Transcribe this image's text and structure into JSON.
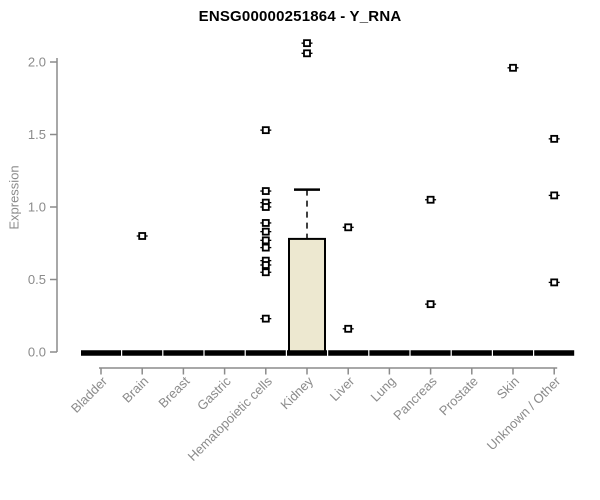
{
  "chart_data": {
    "type": "boxplot",
    "title": "ENSG00000251864 - Y_RNA",
    "ylabel": "Expression",
    "xlabel": "",
    "ylim": [
      0,
      2.15
    ],
    "yticks": [
      "0.0",
      "0.5",
      "1.0",
      "1.5",
      "2.0"
    ],
    "ytick_values": [
      0,
      0.5,
      1.0,
      1.5,
      2.0
    ],
    "grid": "off",
    "legend": "none",
    "categories": [
      "Bladder",
      "Brain",
      "Breast",
      "Gastric",
      "Hematopoietic cells",
      "Kidney",
      "Liver",
      "Lung",
      "Pancreas",
      "Prostate",
      "Skin",
      "Unknown / Other"
    ],
    "boxes": [
      {
        "category": "Bladder",
        "q1": 0,
        "median": 0,
        "q3": 0,
        "whisker_low": 0,
        "whisker_high": 0
      },
      {
        "category": "Brain",
        "q1": 0,
        "median": 0,
        "q3": 0,
        "whisker_low": 0,
        "whisker_high": 0
      },
      {
        "category": "Breast",
        "q1": 0,
        "median": 0,
        "q3": 0,
        "whisker_low": 0,
        "whisker_high": 0
      },
      {
        "category": "Gastric",
        "q1": 0,
        "median": 0,
        "q3": 0,
        "whisker_low": 0,
        "whisker_high": 0
      },
      {
        "category": "Hematopoietic cells",
        "q1": 0,
        "median": 0,
        "q3": 0,
        "whisker_low": 0,
        "whisker_high": 0
      },
      {
        "category": "Kidney",
        "q1": 0,
        "median": 0,
        "q3": 0.78,
        "whisker_low": 0,
        "whisker_high": 1.12
      },
      {
        "category": "Liver",
        "q1": 0,
        "median": 0,
        "q3": 0,
        "whisker_low": 0,
        "whisker_high": 0
      },
      {
        "category": "Lung",
        "q1": 0,
        "median": 0,
        "q3": 0,
        "whisker_low": 0,
        "whisker_high": 0
      },
      {
        "category": "Pancreas",
        "q1": 0,
        "median": 0,
        "q3": 0,
        "whisker_low": 0,
        "whisker_high": 0
      },
      {
        "category": "Prostate",
        "q1": 0,
        "median": 0,
        "q3": 0,
        "whisker_low": 0,
        "whisker_high": 0
      },
      {
        "category": "Skin",
        "q1": 0,
        "median": 0,
        "q3": 0,
        "whisker_low": 0,
        "whisker_high": 0
      },
      {
        "category": "Unknown / Other",
        "q1": 0,
        "median": 0,
        "q3": 0,
        "whisker_low": 0,
        "whisker_high": 0
      }
    ],
    "outlier_points": [
      {
        "category": "Brain",
        "value": 0.8
      },
      {
        "category": "Hematopoietic cells",
        "value": 1.53
      },
      {
        "category": "Hematopoietic cells",
        "value": 1.11
      },
      {
        "category": "Hematopoietic cells",
        "value": 1.03
      },
      {
        "category": "Hematopoietic cells",
        "value": 1.0
      },
      {
        "category": "Hematopoietic cells",
        "value": 0.89
      },
      {
        "category": "Hematopoietic cells",
        "value": 0.83
      },
      {
        "category": "Hematopoietic cells",
        "value": 0.77
      },
      {
        "category": "Hematopoietic cells",
        "value": 0.72
      },
      {
        "category": "Hematopoietic cells",
        "value": 0.63
      },
      {
        "category": "Hematopoietic cells",
        "value": 0.6
      },
      {
        "category": "Hematopoietic cells",
        "value": 0.55
      },
      {
        "category": "Hematopoietic cells",
        "value": 0.23
      },
      {
        "category": "Kidney",
        "value": 2.13
      },
      {
        "category": "Kidney",
        "value": 2.06
      },
      {
        "category": "Liver",
        "value": 0.86
      },
      {
        "category": "Liver",
        "value": 0.16
      },
      {
        "category": "Pancreas",
        "value": 1.05
      },
      {
        "category": "Pancreas",
        "value": 0.33
      },
      {
        "category": "Skin",
        "value": 1.96
      },
      {
        "category": "Unknown / Other",
        "value": 1.47
      },
      {
        "category": "Unknown / Other",
        "value": 1.08
      },
      {
        "category": "Unknown / Other",
        "value": 0.48
      }
    ],
    "colors": {
      "box_default_fill": "#000000",
      "kidney_box_fill": "#ede8d0",
      "box_stroke": "#000000",
      "marker": "#000000",
      "axis_line": "#8b8b8b",
      "tick_label": "#8b8b8b",
      "title": "#000000",
      "background": "#ffffff"
    }
  }
}
